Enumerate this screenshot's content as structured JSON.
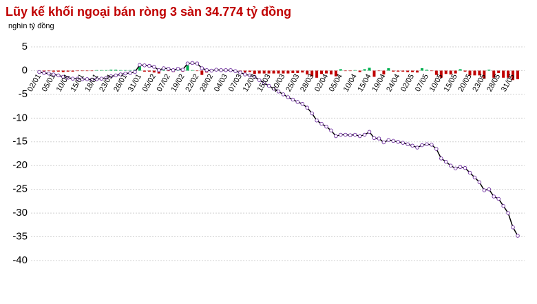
{
  "chart_data": {
    "type": "combo",
    "title": "Lũy kế khối ngoại bán ròng 3 sàn 34.774 tỷ đồng",
    "subtitle": "nghìn tỷ đồng",
    "categories": [
      "02/01",
      null,
      null,
      "05/01",
      null,
      null,
      "10/01",
      null,
      null,
      "15/01",
      null,
      null,
      "18/01",
      null,
      null,
      "23/01",
      null,
      null,
      "26/01",
      null,
      null,
      "31/01",
      null,
      null,
      "05/02",
      null,
      null,
      "07/02",
      null,
      null,
      "19/02",
      null,
      null,
      "22/02",
      null,
      null,
      "28/02",
      null,
      null,
      "04/03",
      null,
      null,
      "07/03",
      null,
      null,
      "12/03",
      null,
      null,
      "15/03",
      null,
      null,
      "20/03",
      null,
      null,
      "25/03",
      null,
      null,
      "28/03",
      null,
      null,
      "02/04",
      null,
      null,
      "05/04",
      null,
      null,
      "10/04",
      null,
      null,
      "15/04",
      null,
      null,
      "19/04",
      null,
      null,
      "24/04",
      null,
      null,
      "02/05",
      null,
      null,
      "07/05",
      null,
      null,
      "10/05",
      null,
      null,
      "15/05",
      null,
      null,
      "20/05",
      null,
      null,
      "23/05",
      null,
      null,
      "28/05",
      null,
      null,
      "31/05",
      null
    ],
    "series": [
      {
        "type": "bar",
        "color_positive": "#00b050",
        "color_negative": "#c00000",
        "values": [
          -0.3,
          -0.2,
          -0.1,
          -0.2,
          -0.2,
          -0.3,
          -0.2,
          -0.2,
          -0.1,
          -0.1,
          -0.1,
          -0.1,
          0.1,
          0.1,
          0.1,
          0.2,
          0.2,
          0.1,
          0.1,
          0.1,
          0.2,
          1.0,
          -0.2,
          -0.2,
          -0.4,
          -0.6,
          0.3,
          -0.1,
          -0.3,
          0.3,
          -0.2,
          1.1,
          0.1,
          -0.1,
          -0.9,
          -0.4,
          -0.1,
          0.2,
          -0.1,
          0.0,
          0.0,
          -0.2,
          -0.3,
          -0.4,
          -0.3,
          -0.7,
          -0.6,
          -0.6,
          -0.6,
          -0.6,
          -0.6,
          -0.6,
          -0.6,
          -0.5,
          -0.5,
          -0.4,
          -0.8,
          -1.2,
          -1.5,
          -0.7,
          -0.6,
          -0.8,
          -1.2,
          0.3,
          -0.1,
          -0.1,
          0.1,
          -0.3,
          0.3,
          0.6,
          -1.3,
          -0.1,
          -0.8,
          0.5,
          -0.2,
          -0.2,
          -0.2,
          -0.3,
          -0.3,
          -0.4,
          0.5,
          0.2,
          -0.1,
          -0.9,
          -1.5,
          -0.7,
          -0.8,
          -0.6,
          0.3,
          -0.2,
          -1.0,
          -1.0,
          -1.0,
          -1.7,
          0.2,
          -1.5,
          -0.5,
          -1.5,
          -1.5,
          -2.0,
          -1.8
        ]
      },
      {
        "type": "line",
        "color": "#000000",
        "marker_color": "#7030a0",
        "values": [
          -0.3,
          -0.5,
          -0.6,
          -0.8,
          -1.0,
          -1.3,
          -1.5,
          -1.7,
          -1.7,
          -1.8,
          -1.8,
          -1.9,
          -1.8,
          -1.7,
          -1.5,
          -1.2,
          -1.0,
          -0.8,
          -0.6,
          -0.5,
          -0.3,
          1.2,
          1.1,
          1.0,
          0.8,
          0.1,
          0.5,
          0.4,
          0.1,
          0.4,
          0.2,
          1.5,
          1.6,
          1.5,
          0.5,
          0.1,
          0.0,
          0.2,
          0.1,
          0.1,
          0.1,
          -0.1,
          -0.4,
          -0.8,
          -1.0,
          -1.3,
          -2.0,
          -2.6,
          -3.2,
          -3.8,
          -4.4,
          -5.0,
          -5.6,
          -6.1,
          -6.6,
          -7.0,
          -7.8,
          -9.0,
          -10.5,
          -11.2,
          -11.8,
          -12.6,
          -13.8,
          -13.5,
          -13.5,
          -13.6,
          -13.5,
          -13.8,
          -13.5,
          -12.9,
          -14.2,
          -14.3,
          -15.1,
          -14.6,
          -14.8,
          -15.0,
          -15.2,
          -15.5,
          -15.8,
          -16.2,
          -15.7,
          -15.5,
          -15.6,
          -16.5,
          -18.5,
          -19.2,
          -20.0,
          -20.6,
          -20.3,
          -20.5,
          -21.5,
          -22.5,
          -23.5,
          -25.2,
          -25.0,
          -26.5,
          -27.0,
          -28.5,
          -30.0,
          -33.0,
          -34.774
        ]
      }
    ],
    "ylim": [
      5,
      -40
    ],
    "yticks": [
      5,
      0,
      -5,
      -10,
      -15,
      -20,
      -25,
      -30,
      -35,
      -40
    ],
    "grid": true,
    "grid_color": "#d0d0d0",
    "title_color": "#c00000"
  }
}
